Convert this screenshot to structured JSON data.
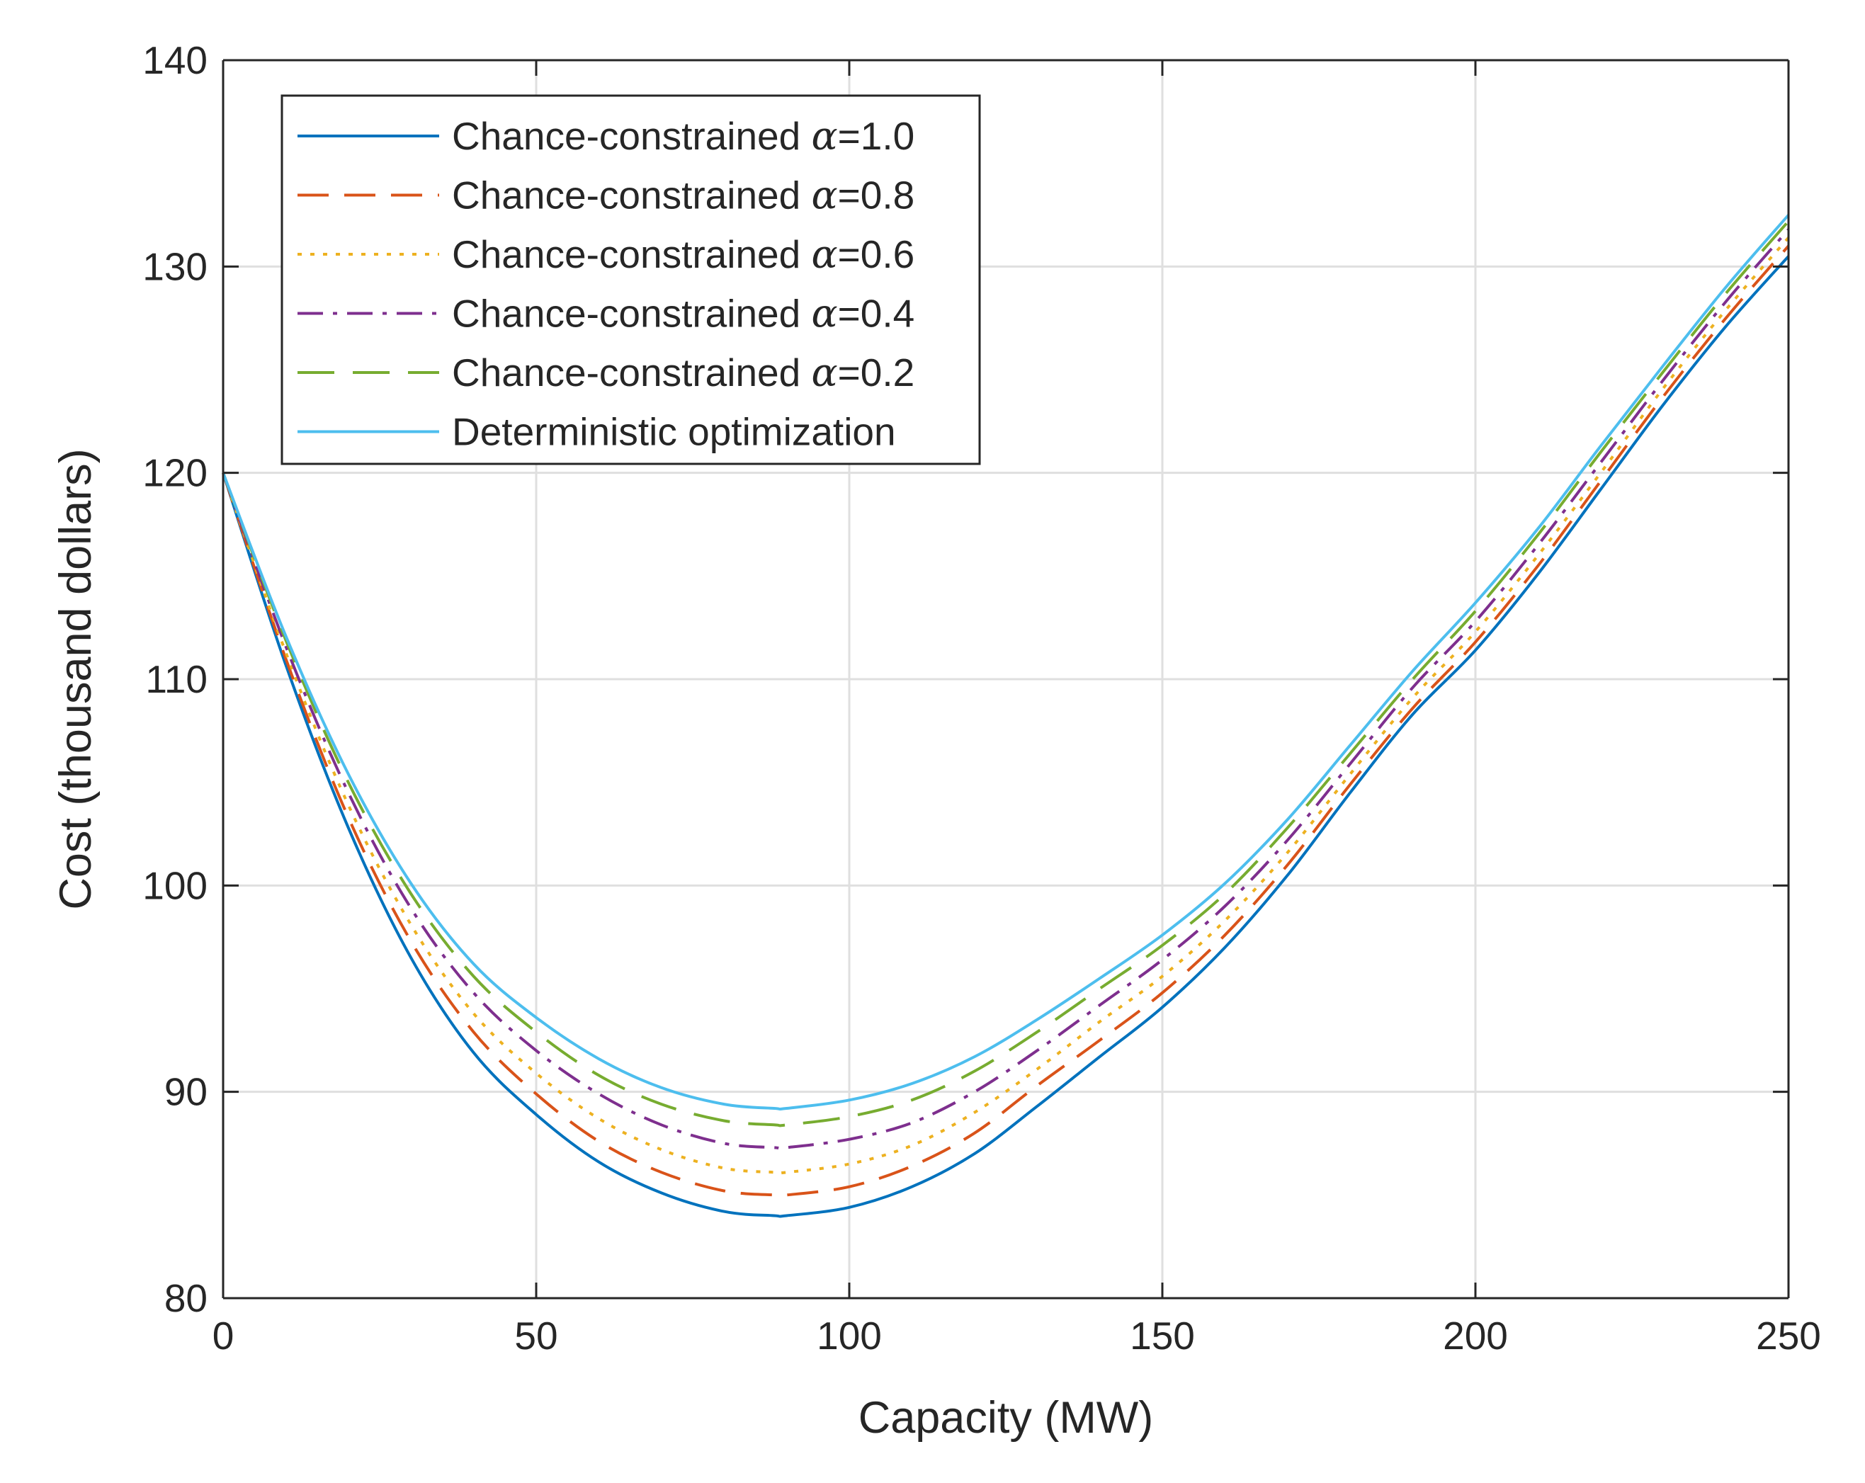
{
  "chart_data": {
    "type": "line",
    "xlabel": "Capacity (MW)",
    "ylabel": "Cost (thousand dollars)",
    "xlim": [
      0,
      250
    ],
    "ylim": [
      80,
      140
    ],
    "xticks": [
      0,
      50,
      100,
      150,
      200,
      250
    ],
    "yticks": [
      80,
      90,
      100,
      110,
      120,
      130,
      140
    ],
    "grid": true,
    "legend_position": "top-left",
    "x": [
      0,
      10,
      20,
      30,
      40,
      50,
      60,
      70,
      80,
      88,
      90,
      100,
      110,
      120,
      130,
      140,
      150,
      160,
      170,
      180,
      190,
      200,
      210,
      220,
      230,
      240,
      250
    ],
    "series": [
      {
        "name": "Chance-constrained α=1.0",
        "legend_prefix": "Chance-constrained ",
        "legend_symbol": "α",
        "legend_suffix": "=1.0",
        "color": "#0072BD",
        "style": "solid",
        "values": [
          120,
          110.7,
          102.8,
          96.5,
          91.9,
          88.9,
          86.6,
          85.1,
          84.2,
          84.0,
          84.0,
          84.4,
          85.4,
          87.0,
          89.3,
          91.7,
          94.1,
          97.0,
          100.5,
          104.5,
          108.3,
          111.4,
          115.1,
          119.2,
          123.3,
          127.1,
          130.5
        ]
      },
      {
        "name": "Chance-constrained α=0.8",
        "legend_prefix": "Chance-constrained ",
        "legend_symbol": "α",
        "legend_suffix": "=0.8",
        "color": "#D95319",
        "style": "dashed",
        "values": [
          120,
          111.0,
          103.3,
          97.3,
          92.9,
          89.9,
          87.6,
          86.1,
          85.2,
          85.0,
          85.0,
          85.4,
          86.4,
          88.0,
          90.3,
          92.5,
          94.8,
          97.6,
          101.0,
          104.9,
          108.6,
          111.8,
          115.5,
          119.6,
          123.7,
          127.5,
          131.0
        ]
      },
      {
        "name": "Chance-constrained α=0.6",
        "legend_prefix": "Chance-constrained ",
        "legend_symbol": "α",
        "legend_suffix": "=0.6",
        "color": "#EDB120",
        "style": "dotted",
        "values": [
          120,
          111.3,
          103.9,
          98.1,
          93.8,
          90.9,
          88.7,
          87.2,
          86.3,
          86.1,
          86.1,
          86.5,
          87.4,
          89.0,
          91.1,
          93.4,
          95.6,
          98.3,
          101.6,
          105.4,
          109.1,
          112.3,
          116.0,
          120.0,
          124.1,
          127.9,
          131.4
        ]
      },
      {
        "name": "Chance-constrained α=0.4",
        "legend_prefix": "Chance-constrained ",
        "legend_symbol": "α",
        "legend_suffix": "=0.4",
        "color": "#7E2F8E",
        "style": "dashdot",
        "values": [
          120,
          111.6,
          104.5,
          98.9,
          94.8,
          92.0,
          89.9,
          88.4,
          87.5,
          87.3,
          87.3,
          87.7,
          88.5,
          90.0,
          92.0,
          94.2,
          96.4,
          99.0,
          102.2,
          105.9,
          109.6,
          112.8,
          116.5,
          120.5,
          124.5,
          128.3,
          131.8
        ]
      },
      {
        "name": "Chance-constrained α=0.2",
        "legend_prefix": "Chance-constrained ",
        "legend_symbol": "α",
        "legend_suffix": "=0.2",
        "color": "#77AC30",
        "style": "longdash",
        "values": [
          120,
          111.9,
          105.0,
          99.6,
          95.6,
          92.9,
          90.8,
          89.4,
          88.6,
          88.4,
          88.4,
          88.8,
          89.6,
          91.0,
          92.9,
          95.0,
          97.1,
          99.6,
          102.8,
          106.4,
          110.0,
          113.3,
          117.0,
          121.0,
          124.9,
          128.7,
          132.2
        ]
      },
      {
        "name": "Deterministic optimization",
        "legend_prefix": "Deterministic optimization",
        "legend_symbol": "",
        "legend_suffix": "",
        "color": "#4DBEEE",
        "style": "solid",
        "values": [
          120,
          112.1,
          105.4,
          100.1,
          96.2,
          93.6,
          91.6,
          90.2,
          89.4,
          89.2,
          89.2,
          89.6,
          90.4,
          91.7,
          93.5,
          95.5,
          97.6,
          100.1,
          103.2,
          106.8,
          110.4,
          113.7,
          117.3,
          121.3,
          125.2,
          129.0,
          132.5
        ]
      }
    ]
  }
}
